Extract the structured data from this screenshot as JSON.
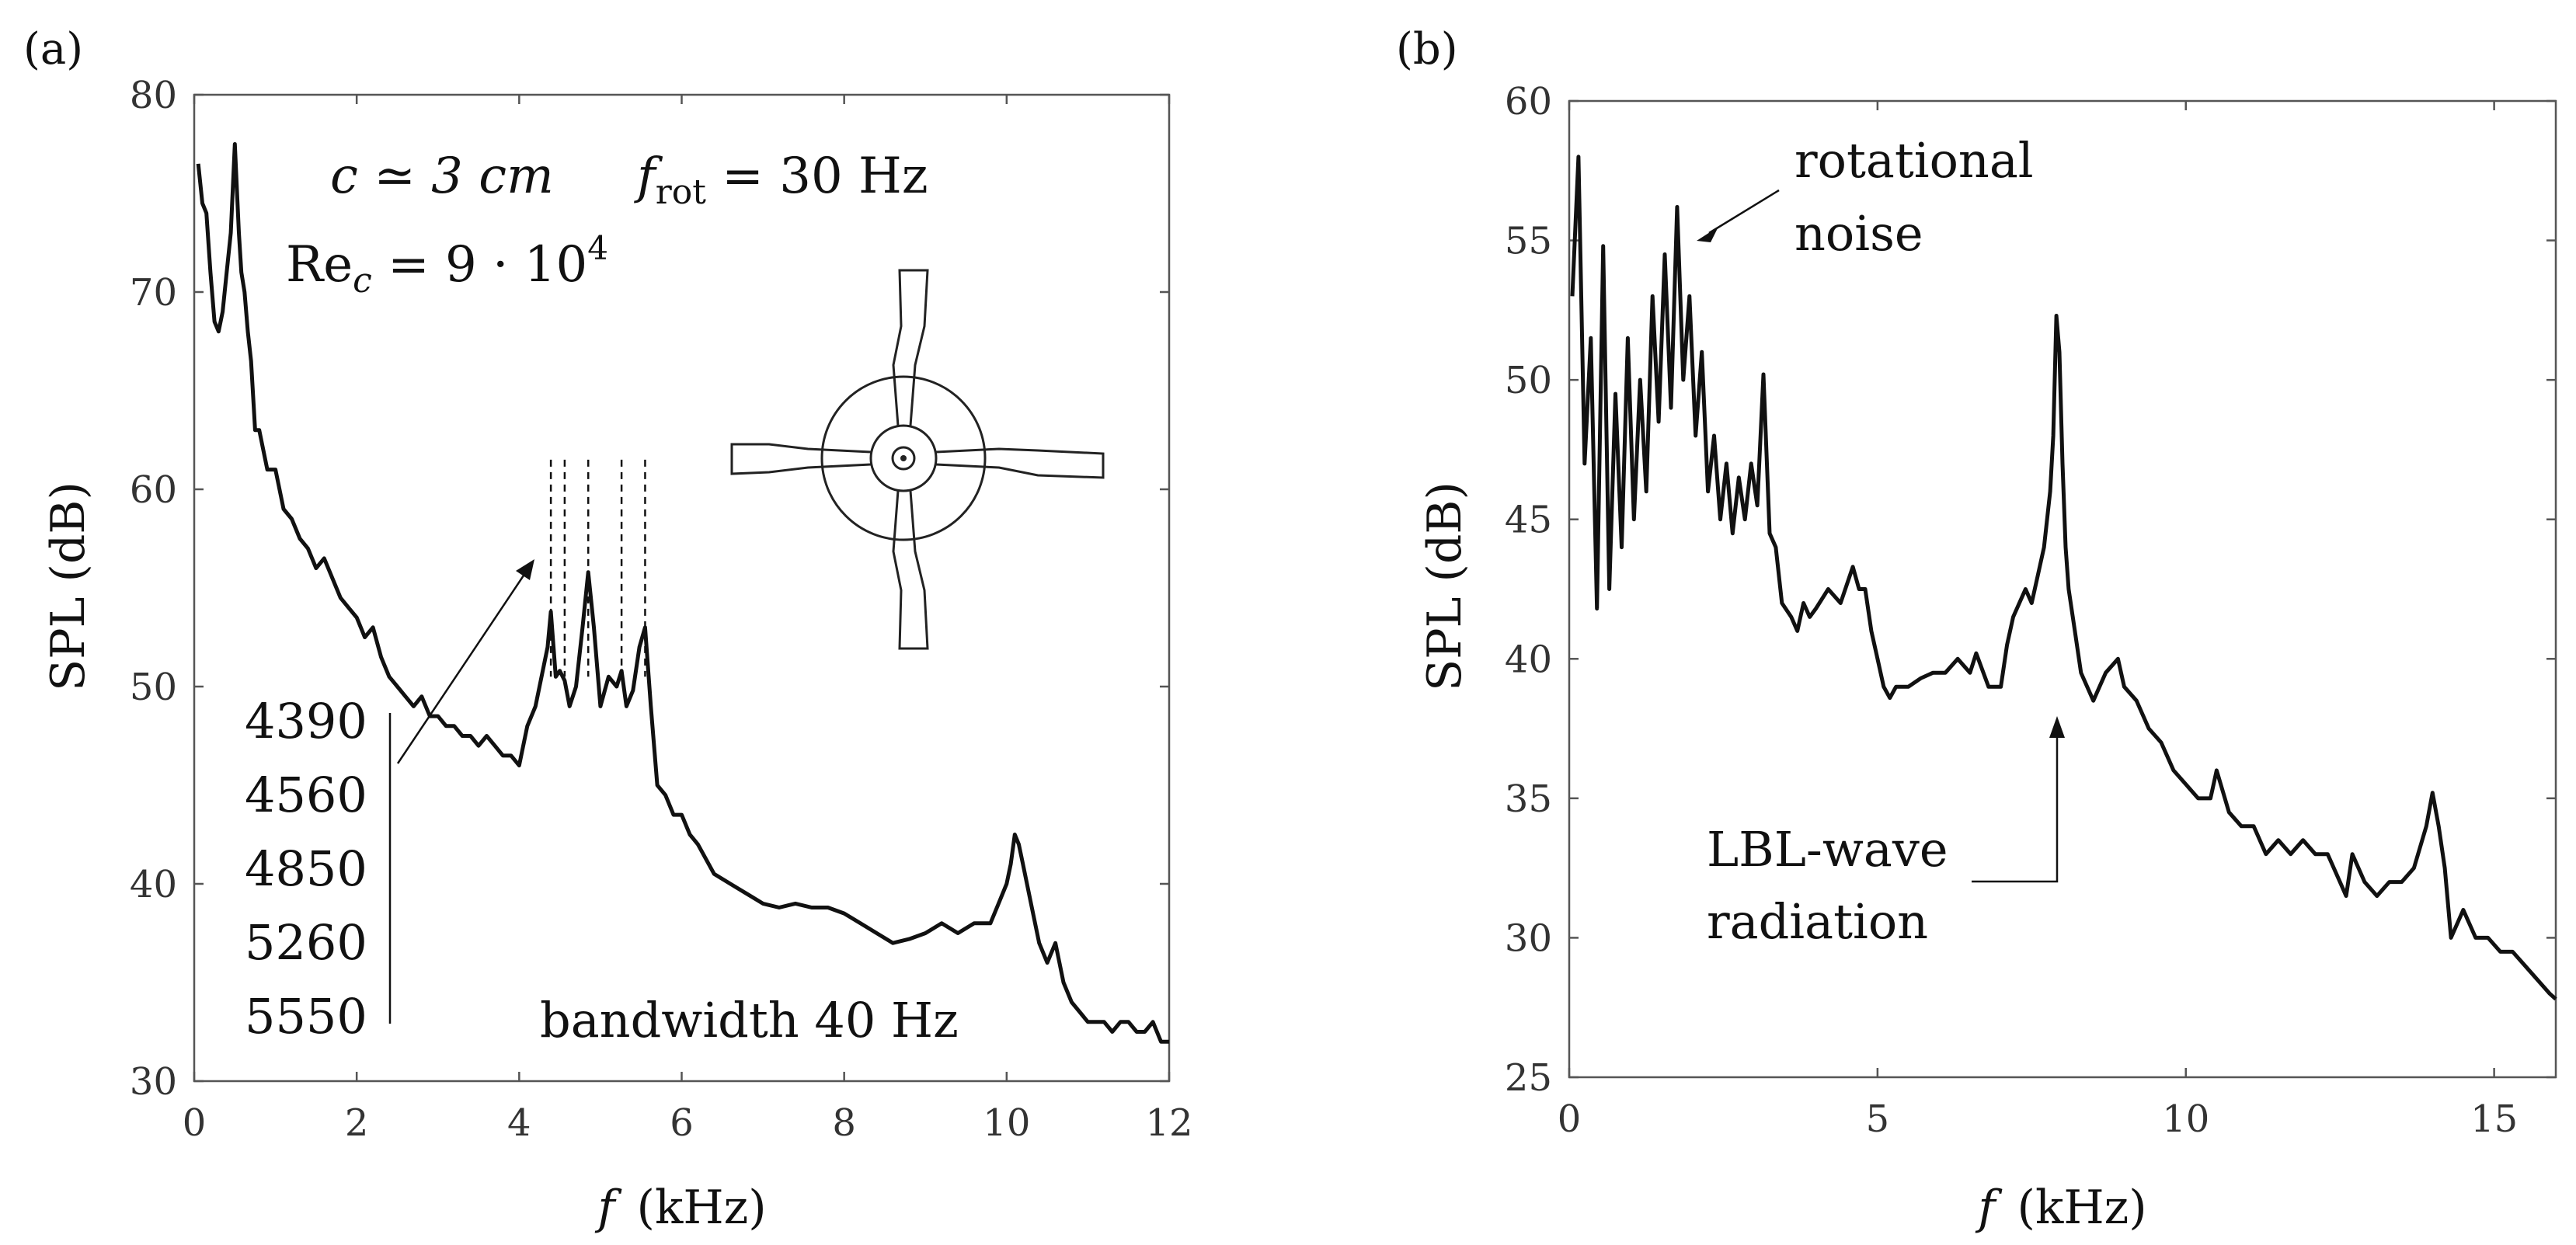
{
  "chart_data": [
    {
      "panel_label": "(a)",
      "type": "line",
      "xlabel_symbol": "f",
      "xlabel_unit": "(kHz)",
      "ylabel": "SPL (dB)",
      "xlim": [
        0,
        12
      ],
      "ylim": [
        30,
        80
      ],
      "xticks": [
        0,
        2,
        4,
        6,
        8,
        10,
        12
      ],
      "yticks": [
        30,
        40,
        50,
        60,
        70,
        80
      ],
      "annotations": {
        "chord": "c ≃ 3 cm",
        "frot_symbol": "f",
        "frot_sub": "rot",
        "frot_value": " = 30 Hz",
        "re_main": "Re",
        "re_sub": "c",
        "re_value": " = 9 · 10",
        "re_exp": "4",
        "bandwidth": "bandwidth 40 Hz",
        "peak_freqs": [
          "4390",
          "4560",
          "4850",
          "5260",
          "5550"
        ]
      },
      "peak_lines_khz": [
        4.39,
        4.56,
        4.85,
        5.26,
        5.55
      ],
      "series": [
        {
          "name": "SPL",
          "x": [
            0.05,
            0.1,
            0.15,
            0.2,
            0.25,
            0.3,
            0.35,
            0.4,
            0.45,
            0.5,
            0.55,
            0.58,
            0.62,
            0.66,
            0.7,
            0.75,
            0.8,
            0.85,
            0.9,
            1.0,
            1.1,
            1.2,
            1.3,
            1.4,
            1.5,
            1.6,
            1.7,
            1.8,
            1.9,
            2.0,
            2.1,
            2.2,
            2.3,
            2.4,
            2.5,
            2.6,
            2.7,
            2.8,
            2.9,
            3.0,
            3.1,
            3.2,
            3.3,
            3.4,
            3.5,
            3.6,
            3.7,
            3.8,
            3.9,
            4.0,
            4.1,
            4.2,
            4.25,
            4.3,
            4.35,
            4.39,
            4.45,
            4.5,
            4.56,
            4.62,
            4.7,
            4.78,
            4.85,
            4.92,
            5.0,
            5.1,
            5.2,
            5.26,
            5.32,
            5.4,
            5.48,
            5.55,
            5.62,
            5.7,
            5.8,
            5.9,
            6.0,
            6.1,
            6.2,
            6.4,
            6.6,
            6.8,
            7.0,
            7.2,
            7.4,
            7.6,
            7.8,
            8.0,
            8.2,
            8.4,
            8.6,
            8.8,
            9.0,
            9.2,
            9.4,
            9.6,
            9.8,
            9.9,
            10.0,
            10.05,
            10.1,
            10.15,
            10.2,
            10.3,
            10.4,
            10.5,
            10.6,
            10.7,
            10.8,
            10.9,
            11.0,
            11.1,
            11.2,
            11.3,
            11.4,
            11.5,
            11.6,
            11.7,
            11.8,
            11.9,
            12.0
          ],
          "y": [
            76.5,
            74.5,
            74,
            71,
            68.5,
            68,
            69,
            71,
            73,
            77.5,
            73,
            71,
            70,
            68,
            66.5,
            63,
            63,
            62,
            61,
            61,
            59,
            58.5,
            57.5,
            57,
            56,
            56.5,
            55.5,
            54.5,
            54,
            53.5,
            52.5,
            53,
            51.5,
            50.5,
            50,
            49.5,
            49,
            49.5,
            48.5,
            48.5,
            48,
            48,
            47.5,
            47.5,
            47,
            47.5,
            47,
            46.5,
            46.5,
            46,
            48,
            49,
            50,
            51,
            52,
            53.8,
            50.5,
            50.8,
            50.3,
            49,
            50,
            53,
            55.8,
            53,
            49,
            50.5,
            50,
            50.8,
            49,
            49.8,
            52,
            53,
            49,
            45,
            44.5,
            43.5,
            43.5,
            42.5,
            42,
            40.5,
            40,
            39.5,
            39,
            38.8,
            39,
            38.8,
            38.8,
            38.5,
            38,
            37.5,
            37,
            37.2,
            37.5,
            38,
            37.5,
            38,
            38,
            39,
            40,
            41,
            42.5,
            42,
            41,
            39,
            37,
            36,
            37,
            35,
            34,
            33.5,
            33,
            33,
            33,
            32.5,
            33,
            33,
            32.5,
            32.5,
            33,
            32,
            32
          ]
        }
      ]
    },
    {
      "panel_label": "(b)",
      "type": "line",
      "xlabel_symbol": "f",
      "xlabel_unit": "(kHz)",
      "ylabel": "SPL (dB)",
      "xlim": [
        0,
        16
      ],
      "ylim": [
        25,
        60
      ],
      "xticks": [
        0,
        5,
        10,
        15
      ],
      "yticks": [
        25,
        30,
        35,
        40,
        45,
        50,
        55,
        60
      ],
      "annotations": {
        "rotational_line1": "rotational",
        "rotational_line2": "noise",
        "lbl_line1": "LBL-wave",
        "lbl_line2": "radiation"
      },
      "series": [
        {
          "name": "SPL",
          "x": [
            0.05,
            0.15,
            0.25,
            0.35,
            0.45,
            0.55,
            0.65,
            0.75,
            0.85,
            0.95,
            1.05,
            1.15,
            1.25,
            1.35,
            1.45,
            1.55,
            1.65,
            1.75,
            1.85,
            1.95,
            2.05,
            2.15,
            2.25,
            2.35,
            2.45,
            2.55,
            2.65,
            2.75,
            2.85,
            2.95,
            3.05,
            3.15,
            3.25,
            3.35,
            3.45,
            3.6,
            3.7,
            3.8,
            3.9,
            4.0,
            4.2,
            4.4,
            4.6,
            4.7,
            4.8,
            4.9,
            5.0,
            5.1,
            5.2,
            5.3,
            5.5,
            5.7,
            5.9,
            6.1,
            6.3,
            6.5,
            6.6,
            6.8,
            7.0,
            7.1,
            7.2,
            7.4,
            7.5,
            7.6,
            7.7,
            7.8,
            7.85,
            7.9,
            7.95,
            8.0,
            8.05,
            8.1,
            8.2,
            8.3,
            8.5,
            8.7,
            8.9,
            9.0,
            9.2,
            9.4,
            9.6,
            9.8,
            10.0,
            10.2,
            10.4,
            10.5,
            10.7,
            10.9,
            11.1,
            11.3,
            11.5,
            11.7,
            11.9,
            12.1,
            12.3,
            12.5,
            12.6,
            12.7,
            12.9,
            13.1,
            13.3,
            13.5,
            13.7,
            13.9,
            14.0,
            14.1,
            14.2,
            14.3,
            14.4,
            14.5,
            14.7,
            14.9,
            15.1,
            15.3,
            15.5,
            15.7,
            15.9,
            16.0
          ],
          "y": [
            53,
            58,
            47,
            51.5,
            41.8,
            54.8,
            42.5,
            49.5,
            44,
            51.5,
            45,
            50,
            46,
            53,
            48.5,
            54.5,
            49,
            56.2,
            50,
            53,
            48,
            51,
            46,
            48,
            45,
            47,
            44.5,
            46.5,
            45,
            47,
            45.5,
            50.2,
            44.5,
            44,
            42,
            41.5,
            41,
            42,
            41.5,
            41.8,
            42.5,
            42,
            43.3,
            42.5,
            42.5,
            41,
            40,
            39,
            38.6,
            39,
            39,
            39.3,
            39.5,
            39.5,
            40,
            39.5,
            40.2,
            39,
            39,
            40.5,
            41.5,
            42.5,
            42,
            43,
            44,
            46,
            48,
            52.3,
            51,
            47,
            44,
            42.5,
            41,
            39.5,
            38.5,
            39.5,
            40,
            39,
            38.5,
            37.5,
            37,
            36,
            35.5,
            35,
            35,
            36,
            34.5,
            34,
            34,
            33,
            33.5,
            33,
            33.5,
            33,
            33,
            32,
            31.5,
            33,
            32,
            31.5,
            32,
            32,
            32.5,
            34,
            35.2,
            34,
            32.5,
            30,
            30.5,
            31,
            30,
            30,
            29.5,
            29.5,
            29,
            28.5,
            28,
            27.8
          ]
        }
      ]
    }
  ]
}
